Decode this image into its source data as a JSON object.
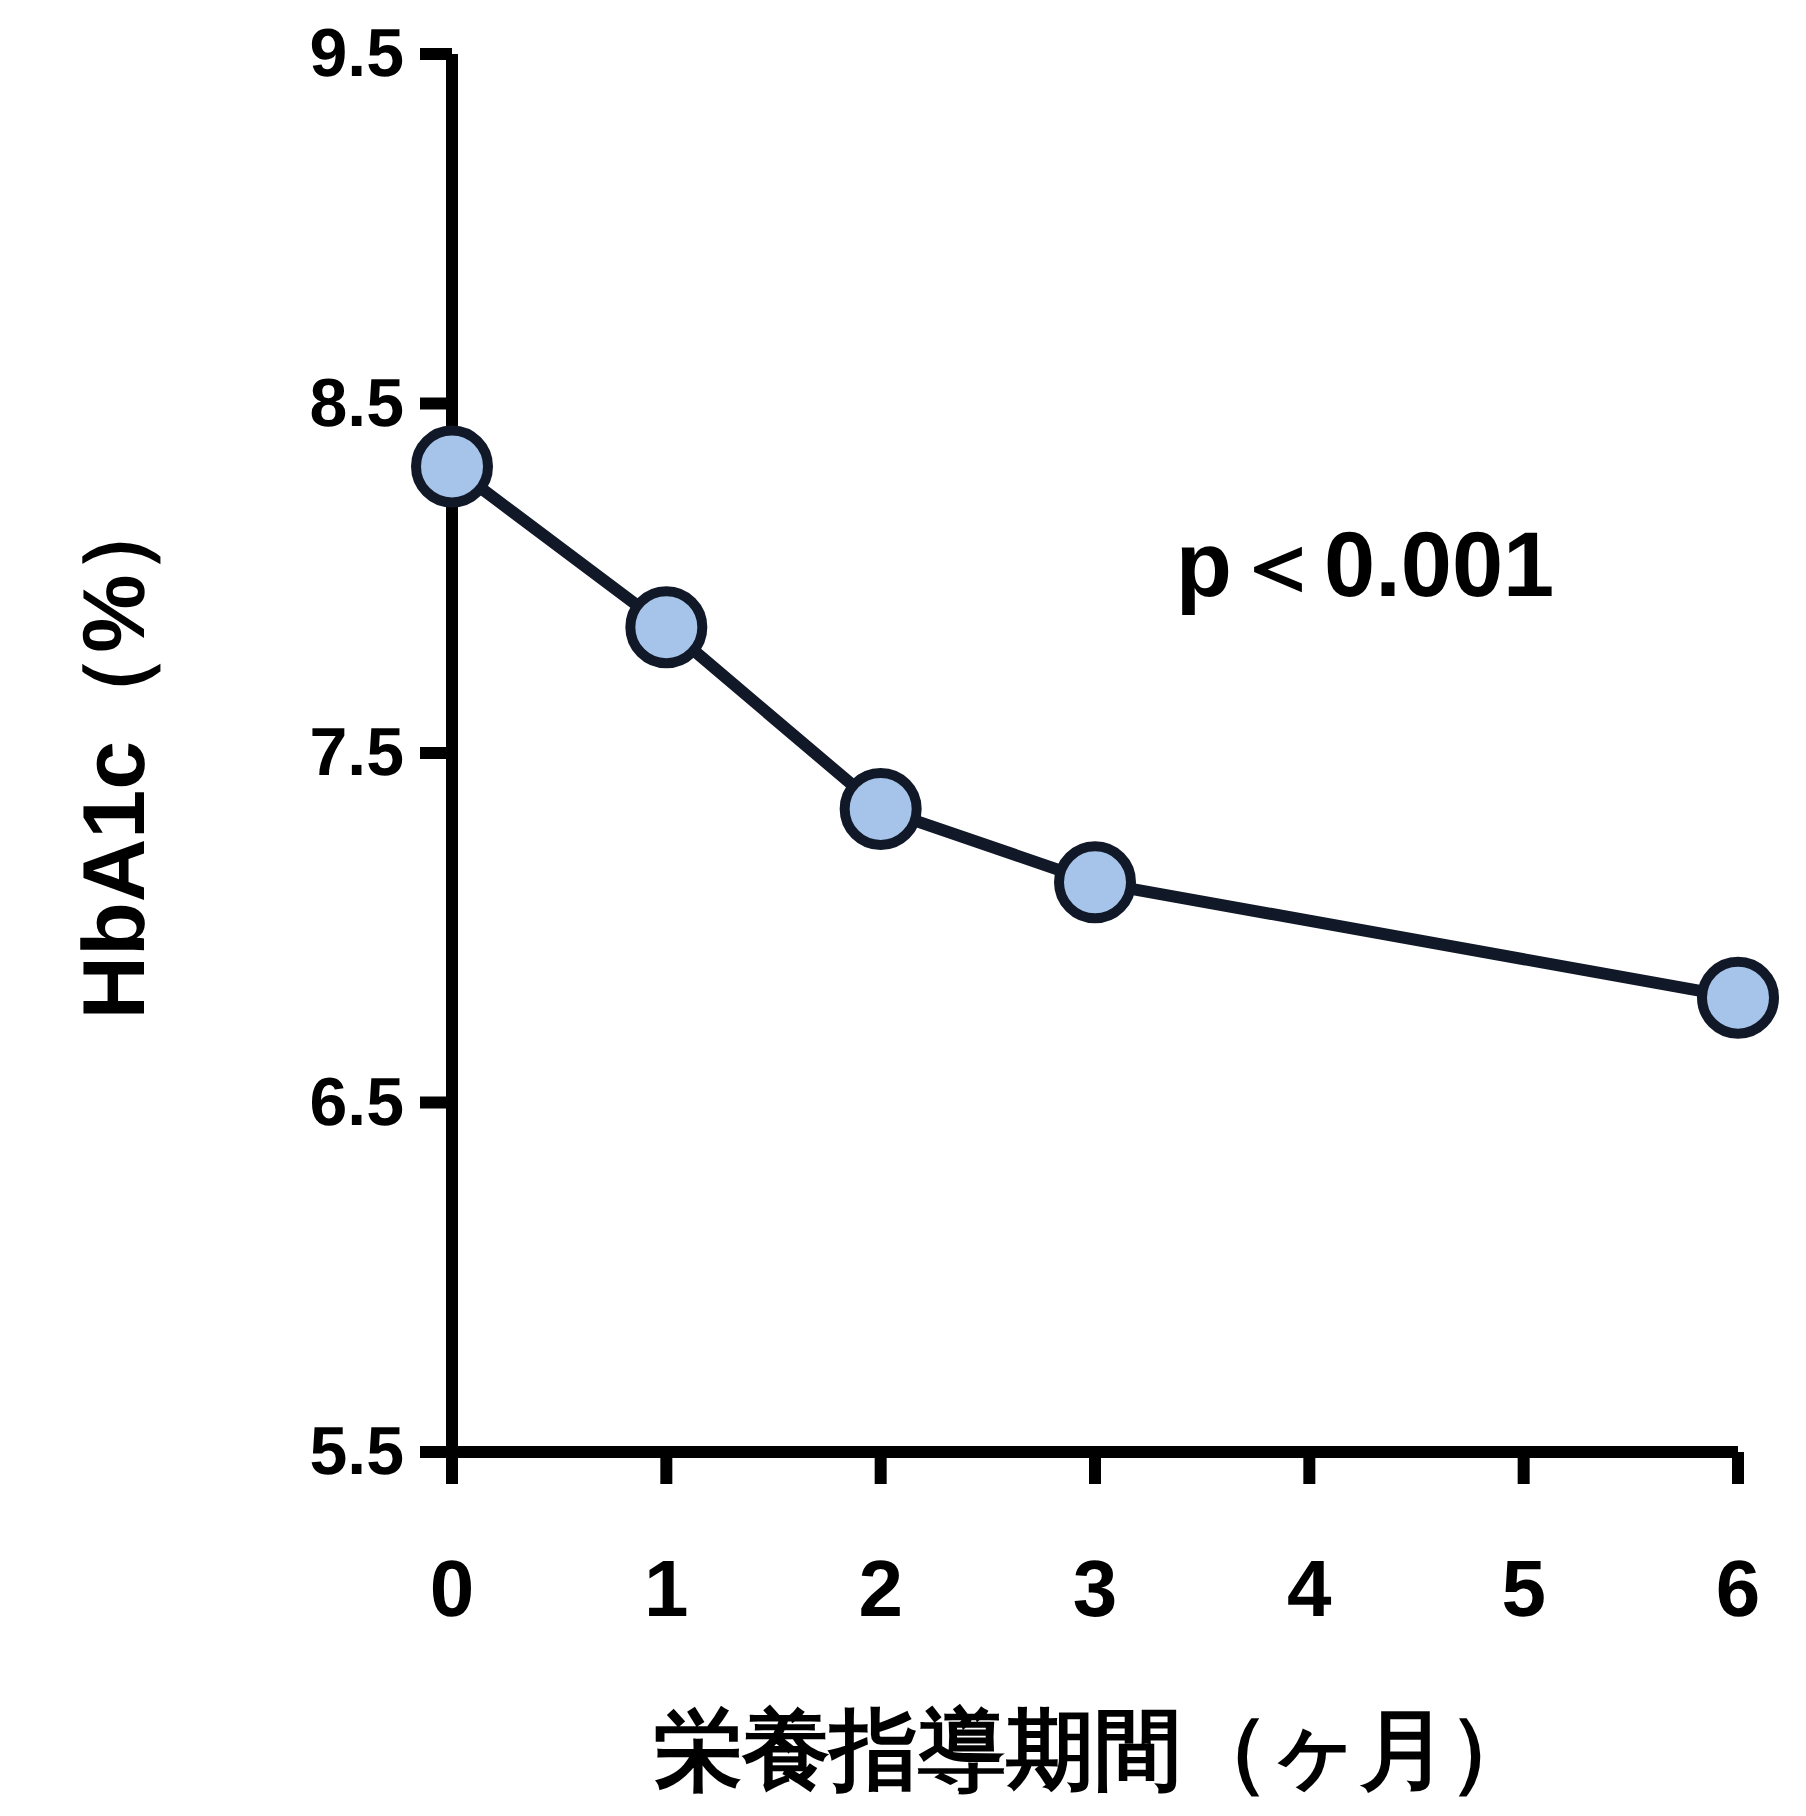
{
  "chart_data": {
    "type": "line",
    "xlabel": "栄養指導期間（ヶ月）",
    "ylabel": "HbA1c（%）",
    "annotations": [
      "p＜0.001"
    ],
    "x": [
      0,
      1,
      2,
      3,
      6
    ],
    "series": [
      {
        "color": "#a6c3ea",
        "values": [
          8.32,
          7.86,
          7.34,
          7.13,
          6.8
        ]
      }
    ],
    "xlim": [
      0,
      6
    ],
    "xticks": [
      0,
      1,
      2,
      3,
      4,
      5,
      6
    ],
    "ylim": [
      5.5,
      9.5
    ],
    "yticks": [
      5.5,
      6.5,
      7.5,
      8.5,
      9.5
    ],
    "marker": "circle",
    "line_style": "solid",
    "grid": false
  }
}
